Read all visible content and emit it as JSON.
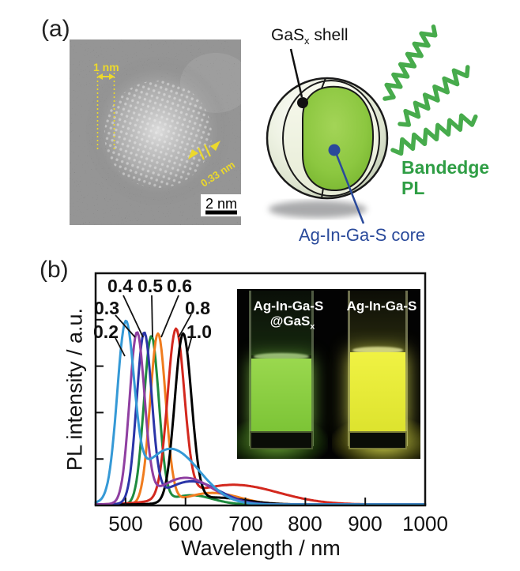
{
  "panels": {
    "a_label": "(a)",
    "b_label": "(b)"
  },
  "tem": {
    "width_annotation": "1 nm",
    "lattice_spacing_annotation": "0.33 nm",
    "scale_bar_label": "2 nm",
    "annotation_color": "#ecd92b"
  },
  "schematic": {
    "shell_label": {
      "base": "GaS",
      "sub": "x",
      "rest": " shell"
    },
    "core_label": "Ag-In-Ga-S core",
    "emission_label": {
      "line1": "Bandedge",
      "line2": "PL"
    },
    "colors": {
      "core_green": "#8cc740",
      "shell_face": "#f5f8ea",
      "emission_green": "#2f9e45",
      "core_label_blue": "#2a4a9b",
      "wave_green": "#47ab4c"
    }
  },
  "inset_photo": {
    "left_sample": {
      "line1": "Ag-In-Ga-S",
      "line2_base": "@GaS",
      "line2_sub": "x",
      "glow_color": "#85cf3e"
    },
    "right_sample": {
      "line1": "Ag-In-Ga-S",
      "glow_color": "#e8ec3f"
    }
  },
  "chart_data": {
    "type": "line",
    "xlabel": "Wavelength / nm",
    "ylabel": "PL intensity / a.u.",
    "x_range_nm": [
      450,
      1000
    ],
    "x_ticks": [
      500,
      600,
      700,
      800,
      900,
      1000
    ],
    "y_ticks_labeled": false,
    "grid": false,
    "series": [
      {
        "label": "0.2",
        "color": "#3599d6",
        "peak_nm": 500,
        "peak_rel_intensity": 0.72,
        "main_sigma_nm": 14,
        "secondary_band": {
          "center_nm": 575,
          "rel_intensity": 0.24,
          "sigma_nm": 48
        }
      },
      {
        "label": "0.3",
        "color": "#8f3fa1",
        "peak_nm": 519,
        "peak_rel_intensity": 0.72,
        "main_sigma_nm": 12.5,
        "secondary_band": {
          "center_nm": 600,
          "rel_intensity": 0.115,
          "sigma_nm": 45
        }
      },
      {
        "label": "0.4",
        "color": "#2b35a8",
        "peak_nm": 531,
        "peak_rel_intensity": 0.72,
        "main_sigma_nm": 12.5,
        "secondary_band": {
          "center_nm": 610,
          "rel_intensity": 0.1,
          "sigma_nm": 45
        }
      },
      {
        "label": "0.5",
        "color": "#1e8b3e",
        "peak_nm": 543,
        "peak_rel_intensity": 0.72,
        "main_sigma_nm": 12.5,
        "secondary_band": {
          "center_nm": 610,
          "rel_intensity": 0.04,
          "sigma_nm": 35
        }
      },
      {
        "label": "0.6",
        "color": "#f07c1e",
        "peak_nm": 554,
        "peak_rel_intensity": 0.73,
        "main_sigma_nm": 13,
        "secondary_band": {
          "center_nm": 645,
          "rel_intensity": 0.05,
          "sigma_nm": 45
        }
      },
      {
        "label": "0.8",
        "color": "#d3281e",
        "peak_nm": 584,
        "peak_rel_intensity": 0.72,
        "main_sigma_nm": 14,
        "secondary_band": {
          "center_nm": 680,
          "rel_intensity": 0.085,
          "sigma_nm": 75
        }
      },
      {
        "label": "1.0",
        "color": "#000000",
        "peak_nm": 596,
        "peak_rel_intensity": 0.72,
        "main_sigma_nm": 14,
        "secondary_band": {
          "center_nm": 650,
          "rel_intensity": 0.03,
          "sigma_nm": 50
        }
      }
    ]
  }
}
